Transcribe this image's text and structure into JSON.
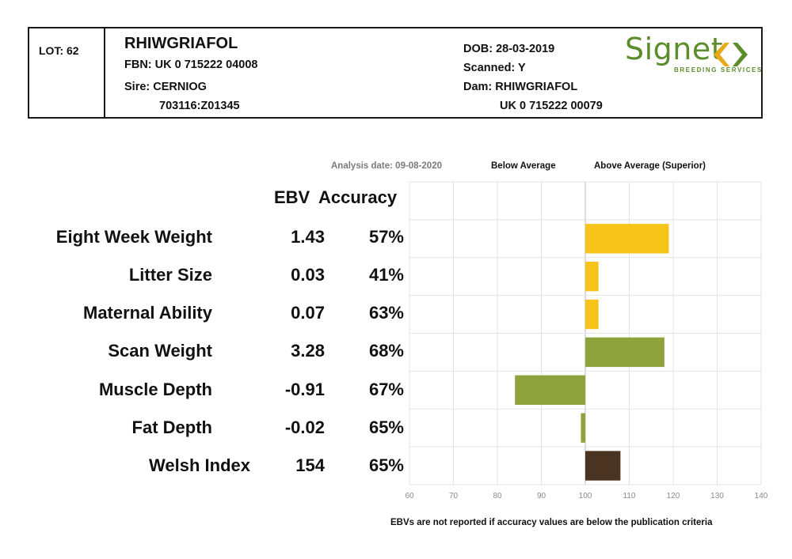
{
  "header": {
    "lot": "LOT: 62",
    "name": "RHIWGRIAFOL",
    "fbn": "FBN: UK 0 715222 04008",
    "sire_label": "Sire: CERNIOG",
    "sire_id": "703116:Z01345",
    "dob": "DOB: 28-03-2019",
    "scanned": "Scanned: Y",
    "dam_label": "Dam: RHIWGRIAFOL",
    "dam_id": "UK 0 715222 00079"
  },
  "logo": {
    "word": "Signet",
    "subtitle": "BREEDING SERVICES",
    "color": "#5c8d2c"
  },
  "analysis_date": "Analysis date: 09-08-2020",
  "below_label": "Below Average",
  "above_label": "Above Average (Superior)",
  "column_headers": {
    "ebv": "EBV",
    "accuracy": "Accuracy"
  },
  "traits": [
    {
      "name": "Eight Week Weight",
      "ebv": "1.43",
      "accuracy": "57%"
    },
    {
      "name": "Litter Size",
      "ebv": "0.03",
      "accuracy": "41%"
    },
    {
      "name": "Maternal Ability",
      "ebv": "0.07",
      "accuracy": "63%"
    },
    {
      "name": "Scan Weight",
      "ebv": "3.28",
      "accuracy": "68%"
    },
    {
      "name": "Muscle Depth",
      "ebv": "-0.91",
      "accuracy": "67%"
    },
    {
      "name": "Fat Depth",
      "ebv": "-0.02",
      "accuracy": "65%"
    },
    {
      "name": "Welsh Index",
      "ebv": "154",
      "accuracy": "65%"
    }
  ],
  "chart_data": {
    "type": "bar",
    "orientation": "horizontal",
    "categories": [
      "Eight Week Weight",
      "Litter Size",
      "Maternal Ability",
      "Scan Weight",
      "Muscle Depth",
      "Fat Depth",
      "Welsh Index"
    ],
    "values": [
      119,
      103,
      103,
      118,
      84,
      99,
      108
    ],
    "colors": [
      "#f6c419",
      "#f6c419",
      "#f6c419",
      "#8ea33c",
      "#8ea33c",
      "#8ea33c",
      "#4a3320"
    ],
    "baseline": 100,
    "xlim": [
      60,
      140
    ],
    "xticks": [
      "60",
      "70",
      "80",
      "90",
      "100",
      "110",
      "120",
      "130",
      "140"
    ],
    "grid": true,
    "title": "",
    "xlabel": "",
    "ylabel": ""
  },
  "footnote": "EBVs are not reported if accuracy values are below the publication criteria"
}
